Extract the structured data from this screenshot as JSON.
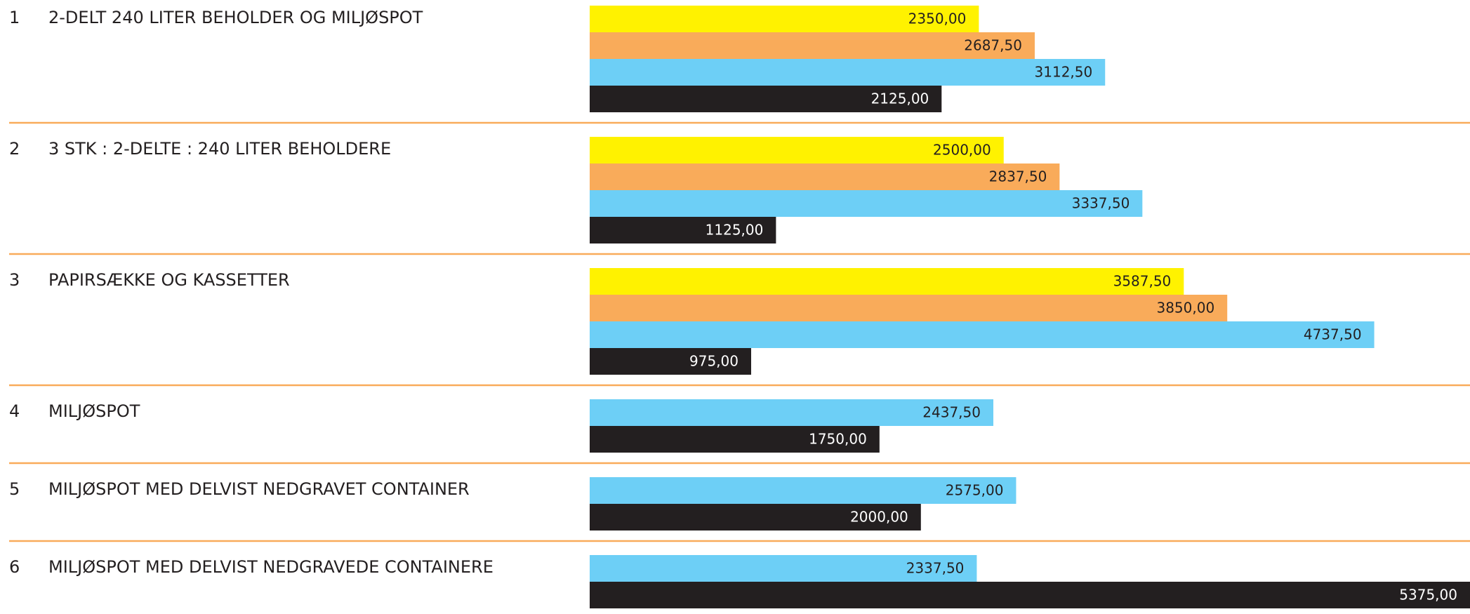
{
  "chart_data": {
    "type": "bar",
    "orientation": "horizontal",
    "category_numbers": [
      "1",
      "2",
      "3",
      "4",
      "5",
      "6"
    ],
    "categories": [
      "2-DELT 240 LITER BEHOLDER OG MILJØSPOT",
      "3 STK : 2-DELTE : 240 LITER BEHOLDERE",
      "PAPIRSÆKKE OG KASSETTER",
      "MILJØSPOT",
      "MILJØSPOT MED DELVIST NEDGRAVET CONTAINER",
      "MILJØSPOT MED DELVIST NEDGRAVEDE CONTAINERE"
    ],
    "separator_color": "#f9ab5a",
    "series": [
      {
        "color": "#fff200",
        "label_color": "#231f20",
        "values": [
          2350,
          2500,
          3587.5,
          null,
          null,
          null
        ],
        "value_labels": [
          "2350,00",
          "2500,00",
          "3587,50",
          null,
          null,
          null
        ]
      },
      {
        "color": "#f9ab5a",
        "label_color": "#231f20",
        "values": [
          2687.5,
          2837.5,
          3850,
          null,
          null,
          null
        ],
        "value_labels": [
          "2687,50",
          "2837,50",
          "3850,00",
          null,
          null,
          null
        ]
      },
      {
        "color": "#6dcff6",
        "label_color": "#231f20",
        "values": [
          3112.5,
          3337.5,
          4737.5,
          2437.5,
          2575,
          2337.5
        ],
        "value_labels": [
          "3112,50",
          "3337,50",
          "4737,50",
          "2437,50",
          "2575,00",
          "2337,50"
        ]
      },
      {
        "color": "#231f20",
        "label_color": "#ffffff",
        "values": [
          2125,
          1125,
          975,
          1750,
          2000,
          5375
        ],
        "value_labels": [
          "2125,00",
          "1125,00",
          "975,00",
          "1750,00",
          "2000,00",
          "5375,00"
        ]
      }
    ]
  }
}
